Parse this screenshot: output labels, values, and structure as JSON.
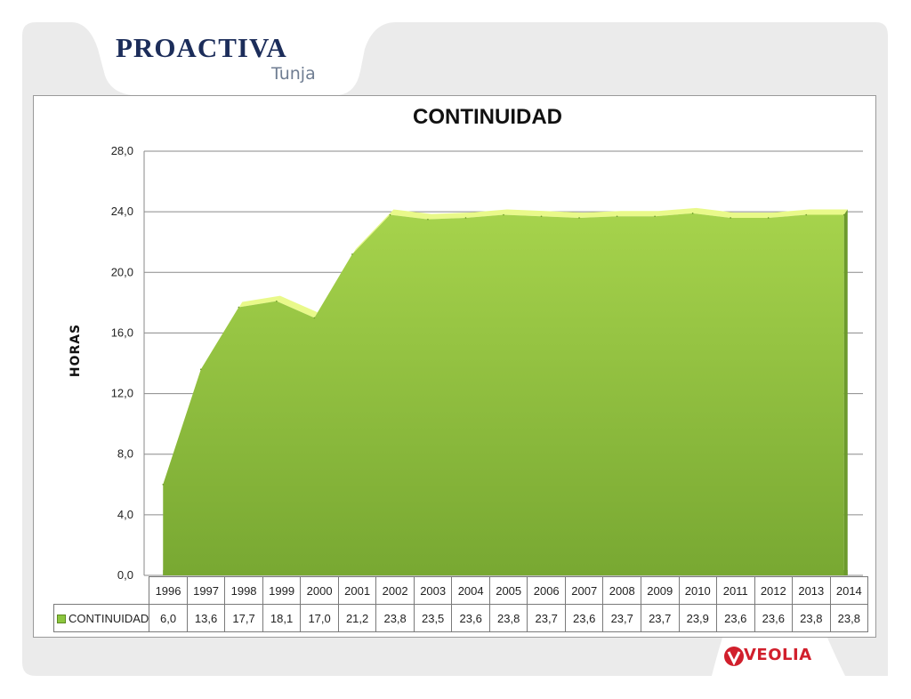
{
  "header": {
    "logo_text": "PROACTIVA",
    "logo_subtext": "Tunja"
  },
  "footer": {
    "brand_text": "VEOLIA",
    "brand_color": "#d11f2c"
  },
  "colors": {
    "area_fill": "#8cc63e",
    "area_top_edge": "#e9f98a",
    "grid": "#8a8a8a",
    "panel_background": "#ebebeb"
  },
  "chart_data": {
    "type": "area",
    "title": "CONTINUIDAD",
    "ylabel": "HORAS",
    "xlabel": "",
    "ylim": [
      0,
      28
    ],
    "yticks": [
      "0,0",
      "4,0",
      "8,0",
      "12,0",
      "16,0",
      "20,0",
      "24,0",
      "28,0"
    ],
    "grid": true,
    "legend": "table-bottom",
    "categories": [
      "1996",
      "1997",
      "1998",
      "1999",
      "2000",
      "2001",
      "2002",
      "2003",
      "2004",
      "2005",
      "2006",
      "2007",
      "2008",
      "2009",
      "2010",
      "2011",
      "2012",
      "2013",
      "2014"
    ],
    "series": [
      {
        "name": "CONTINUIDAD",
        "values": [
          6.0,
          13.6,
          17.7,
          18.1,
          17.0,
          21.2,
          23.8,
          23.5,
          23.6,
          23.8,
          23.7,
          23.6,
          23.7,
          23.7,
          23.9,
          23.6,
          23.6,
          23.8,
          23.8
        ],
        "labels": [
          "6,0",
          "13,6",
          "17,7",
          "18,1",
          "17,0",
          "21,2",
          "23,8",
          "23,5",
          "23,6",
          "23,8",
          "23,7",
          "23,6",
          "23,7",
          "23,7",
          "23,9",
          "23,6",
          "23,6",
          "23,8",
          "23,8"
        ]
      }
    ]
  }
}
